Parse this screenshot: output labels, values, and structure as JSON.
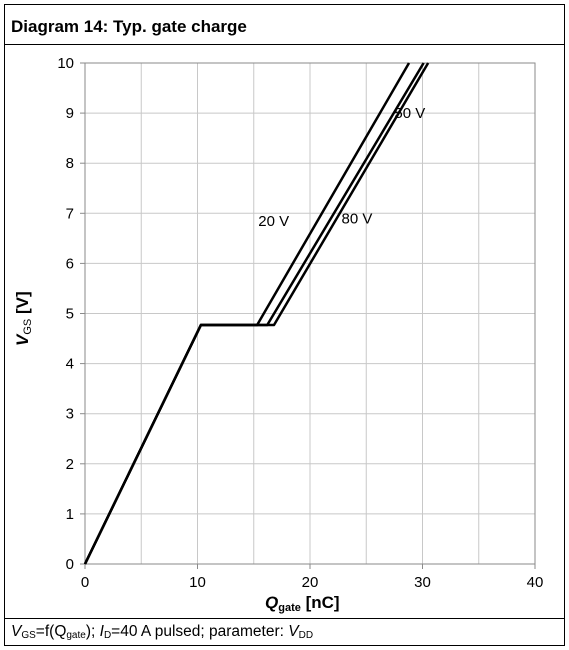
{
  "title": "Diagram 14: Typ. gate charge",
  "caption": {
    "part1": "V",
    "part1_sub": "GS",
    "part2": "=f(Q",
    "part2_sub": "gate",
    "part3": "); ",
    "part4": "I",
    "part4_sub": "D",
    "part5": "=40 A pulsed; parameter: ",
    "part6": "V",
    "part6_sub": "DD"
  },
  "chart_data": {
    "type": "line",
    "xlabel": {
      "main": "Q",
      "sub": "gate",
      "unit": " [nC]"
    },
    "ylabel": {
      "main": "V",
      "sub": "GS",
      "unit": " [V]"
    },
    "xlim": [
      0,
      40
    ],
    "ylim": [
      0,
      10
    ],
    "xticks": [
      0,
      10,
      20,
      30,
      40
    ],
    "yticks": [
      0,
      1,
      2,
      3,
      4,
      5,
      6,
      7,
      8,
      9,
      10
    ],
    "grid": true,
    "series": [
      {
        "name": "20 V",
        "x": [
          0,
          10.3,
          15.3,
          28.8
        ],
        "y": [
          0,
          4.77,
          4.77,
          10
        ]
      },
      {
        "name": "50 V",
        "x": [
          0,
          10.3,
          16.2,
          30.1
        ],
        "y": [
          0,
          4.77,
          4.77,
          10
        ]
      },
      {
        "name": "80 V",
        "x": [
          0,
          10.3,
          16.8,
          30.5
        ],
        "y": [
          0,
          4.77,
          4.77,
          10
        ]
      }
    ],
    "annotations": [
      {
        "text": "20 V",
        "x": 15.4,
        "y": 6.75
      },
      {
        "text": "80 V",
        "x": 22.8,
        "y": 6.8
      },
      {
        "text": "50 V",
        "x": 27.5,
        "y": 8.9
      }
    ]
  }
}
